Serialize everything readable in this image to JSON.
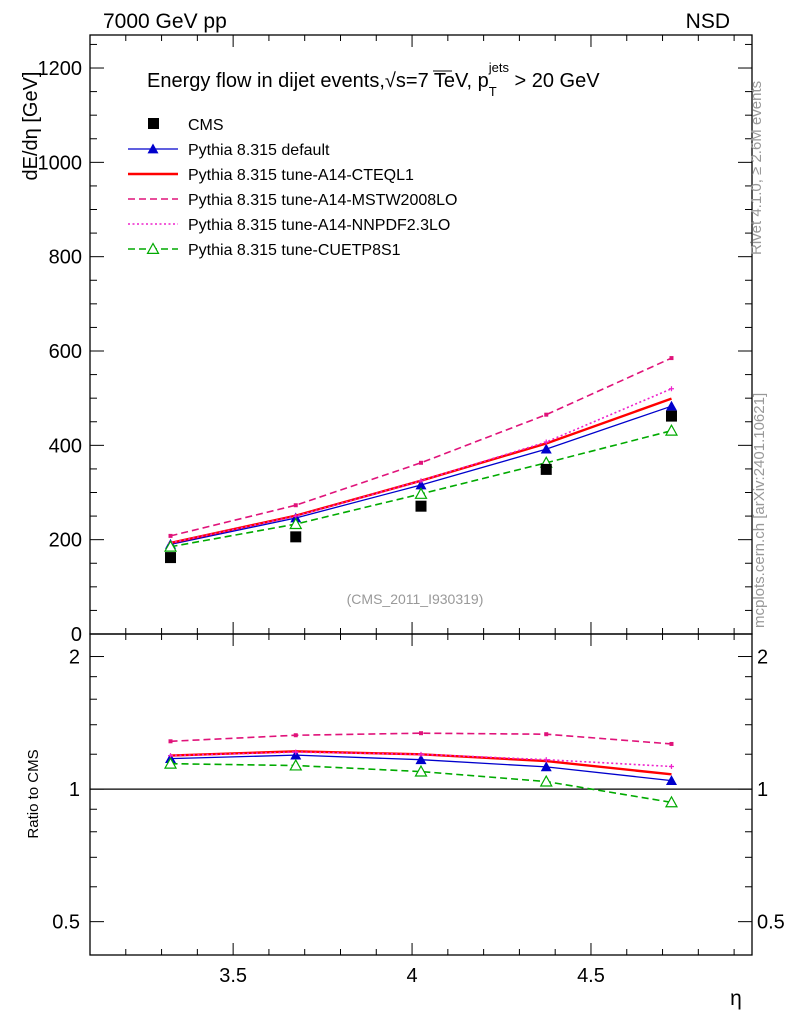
{
  "header": {
    "left": "7000 GeV pp",
    "right": "NSD"
  },
  "side_labels": {
    "rivet": "Rivet 4.1.0, ≥ 2.6M events",
    "mcplots": "mcplots.cern.ch [arXiv:2401.10621]"
  },
  "chart_data": {
    "type": "line",
    "title": {
      "main": "Energy flow in dijet events,",
      "sqrt": "√s",
      "rest": "=7 TeV, p",
      "sub": "T",
      "sup": "jets",
      "tail": " > 20 GeV"
    },
    "analysis_id": "(CMS_2011_I930319)",
    "xlabel": "η",
    "ylabel": "dE/dη [GeV]",
    "ratio_ylabel": "Ratio to CMS",
    "xlim": [
      3.1,
      4.95
    ],
    "ylim": [
      0,
      1270
    ],
    "ratio_ylim": [
      0.42,
      2.25
    ],
    "x_ticks": [
      3.5,
      4,
      4.5
    ],
    "x_tick_labels": [
      "3.5",
      "4",
      "4.5"
    ],
    "y_ticks": [
      0,
      200,
      400,
      600,
      800,
      1000,
      1200
    ],
    "y_tick_labels": [
      "0",
      "200",
      "400",
      "600",
      "800",
      "1000",
      "1200"
    ],
    "ratio_ticks": [
      0.5,
      1,
      2
    ],
    "ratio_tick_labels": [
      "0.5",
      "1",
      "2"
    ],
    "x": [
      3.325,
      3.675,
      4.025,
      4.375,
      4.725
    ],
    "data": {
      "name": "CMS",
      "values": [
        162,
        206,
        271,
        349,
        462
      ],
      "color": "#000000"
    },
    "series": [
      {
        "name": "Pythia 8.315 default",
        "values": [
          190,
          246,
          316,
          392,
          483
        ],
        "color": "#0000cc",
        "style": "solid",
        "marker": "triangle-filled"
      },
      {
        "name": "Pythia 8.315 tune-A14-CTEQL1",
        "values": [
          193,
          251,
          325,
          404,
          499
        ],
        "color": "#ff0000",
        "style": "solid-thick",
        "marker": "none"
      },
      {
        "name": "Pythia 8.315 tune-A14-MSTW2008LO",
        "values": [
          208,
          273,
          363,
          465,
          585
        ],
        "color": "#e0137a",
        "style": "dashed",
        "marker": "small-square"
      },
      {
        "name": "Pythia 8.315 tune-A14-NNPDF2.3LO",
        "values": [
          193,
          250,
          325,
          407,
          520
        ],
        "color": "#ee22cc",
        "style": "dotted",
        "marker": "small-cross"
      },
      {
        "name": "Pythia 8.315 tune-CUETP8S1",
        "values": [
          185,
          233,
          297,
          363,
          431
        ],
        "color": "#00aa00",
        "style": "dashed",
        "marker": "triangle-open"
      }
    ]
  }
}
